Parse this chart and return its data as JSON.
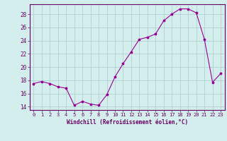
{
  "hours": [
    0,
    1,
    2,
    3,
    4,
    5,
    6,
    7,
    8,
    9,
    10,
    11,
    12,
    13,
    14,
    15,
    16,
    17,
    18,
    19,
    20,
    21,
    22,
    23
  ],
  "windchill": [
    17.5,
    17.8,
    17.5,
    17.0,
    16.8,
    14.2,
    14.8,
    14.4,
    14.2,
    15.8,
    18.5,
    20.5,
    22.3,
    24.2,
    24.5,
    25.0,
    27.0,
    28.0,
    28.8,
    28.8,
    28.2,
    24.2,
    17.7,
    19.0
  ],
  "line_color": "#990099",
  "marker": "*",
  "marker_size": 2.5,
  "bg_color": "#d4eeee",
  "grid_color": "#aacccc",
  "axis_color": "#660066",
  "text_color": "#660066",
  "xlabel": "Windchill (Refroidissement éolien,°C)",
  "ylim": [
    13.5,
    29.5
  ],
  "xlim": [
    -0.5,
    23.5
  ],
  "yticks": [
    14,
    16,
    18,
    20,
    22,
    24,
    26,
    28
  ],
  "xticks": [
    0,
    1,
    2,
    3,
    4,
    5,
    6,
    7,
    8,
    9,
    10,
    11,
    12,
    13,
    14,
    15,
    16,
    17,
    18,
    19,
    20,
    21,
    22,
    23
  ]
}
